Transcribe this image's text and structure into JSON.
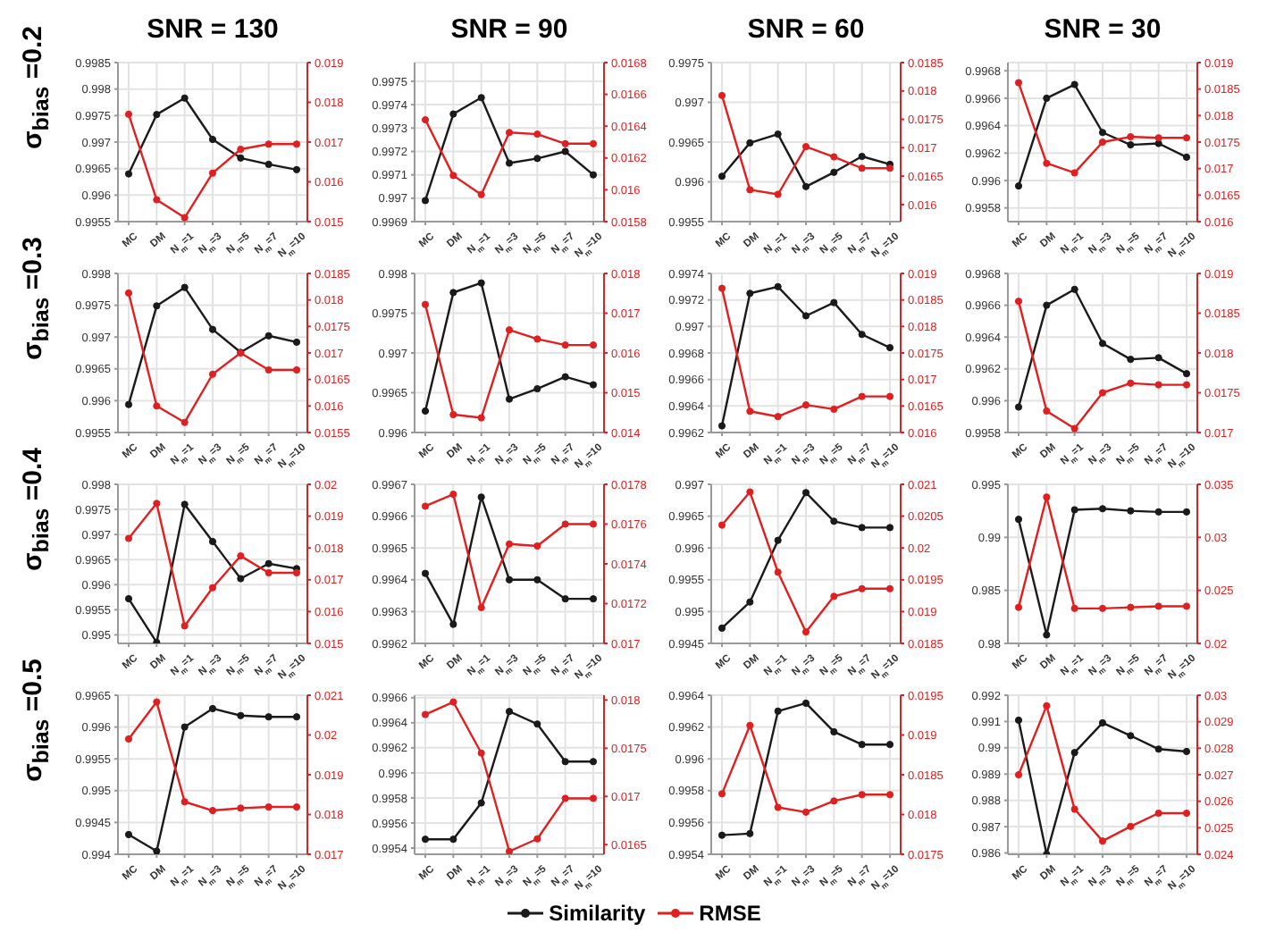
{
  "chart_data": [
    {
      "type": "line",
      "title": "SNR = 130",
      "ylabel": "σ$_{bias}$ =0.2",
      "categories": [
        "MC",
        "DM",
        "N$_{m}$=1",
        "N$_{m}$=3",
        "N$_{m}$=5",
        "N$_{m}$=7",
        "N$_{m}$=10"
      ],
      "series": [
        {
          "color": "#1a1a1a",
          "values": [
            0.9964,
            0.99752,
            0.99783,
            0.99705,
            0.9967,
            0.99658,
            0.99648
          ]
        },
        {
          "color": "#e02020",
          "axis": "y2",
          "values": [
            0.0177,
            0.01555,
            0.0151,
            0.01622,
            0.01682,
            0.01695,
            0.01695
          ]
        }
      ],
      "ylim": [
        0.9955,
        0.9985
      ],
      "yticks": [
        0.9955,
        0.996,
        0.9965,
        0.997,
        0.9975,
        0.998,
        0.9985
      ],
      "y2lim": [
        0.015,
        0.019
      ],
      "y2ticks": [
        0.015,
        0.016,
        0.017,
        0.018,
        0.019
      ],
      "grid": true,
      "marker": "circle"
    },
    {
      "type": "line",
      "title": "SNR = 90",
      "categories": [
        "MC",
        "DM",
        "N$_{m}$=1",
        "N$_{m}$=3",
        "N$_{m}$=5",
        "N$_{m}$=7",
        "N$_{m}$=10"
      ],
      "series": [
        {
          "color": "#1a1a1a",
          "values": [
            0.99699,
            0.99736,
            0.99743,
            0.99715,
            0.99717,
            0.9972,
            0.9971
          ]
        },
        {
          "color": "#e02020",
          "axis": "y2",
          "values": [
            0.01644,
            0.01609,
            0.01597,
            0.01636,
            0.01635,
            0.01629,
            0.01629
          ]
        }
      ],
      "ylim": [
        0.9969,
        0.99758
      ],
      "yticks": [
        0.9969,
        0.997,
        0.9971,
        0.9972,
        0.9973,
        0.9974,
        0.9975
      ],
      "y2lim": [
        0.0158,
        0.0168
      ],
      "y2ticks": [
        0.0158,
        0.016,
        0.0162,
        0.0164,
        0.0166,
        0.0168
      ],
      "grid": true,
      "marker": "circle"
    },
    {
      "type": "line",
      "title": "SNR = 60",
      "categories": [
        "MC",
        "DM",
        "N$_{m}$=1",
        "N$_{m}$=3",
        "N$_{m}$=5",
        "N$_{m}$=7",
        "N$_{m}$=10"
      ],
      "series": [
        {
          "color": "#1a1a1a",
          "values": [
            0.99607,
            0.99649,
            0.9966,
            0.99594,
            0.99612,
            0.99632,
            0.99622
          ]
        },
        {
          "color": "#e02020",
          "axis": "y2",
          "values": [
            0.01792,
            0.01626,
            0.01618,
            0.01702,
            0.01684,
            0.01664,
            0.01664
          ]
        }
      ],
      "ylim": [
        0.9955,
        0.9975
      ],
      "yticks": [
        0.9955,
        0.996,
        0.9965,
        0.997,
        0.9975
      ],
      "y2lim": [
        0.0157,
        0.0185
      ],
      "y2ticks": [
        0.016,
        0.0165,
        0.017,
        0.0175,
        0.018,
        0.0185
      ],
      "grid": true,
      "marker": "circle"
    },
    {
      "type": "line",
      "title": "SNR = 30",
      "categories": [
        "MC",
        "DM",
        "N$_{m}$=1",
        "N$_{m}$=3",
        "N$_{m}$=5",
        "N$_{m}$=7",
        "N$_{m}$=10"
      ],
      "series": [
        {
          "color": "#1a1a1a",
          "values": [
            0.99596,
            0.9966,
            0.9967,
            0.99635,
            0.99626,
            0.99627,
            0.99617
          ]
        },
        {
          "color": "#e02020",
          "axis": "y2",
          "values": [
            0.01862,
            0.0171,
            0.01692,
            0.0175,
            0.0176,
            0.01758,
            0.01758
          ]
        }
      ],
      "ylim": [
        0.9957,
        0.99686
      ],
      "yticks": [
        0.9958,
        0.996,
        0.9962,
        0.9964,
        0.9966,
        0.9968
      ],
      "y2lim": [
        0.016,
        0.019
      ],
      "y2ticks": [
        0.016,
        0.0165,
        0.017,
        0.0175,
        0.018,
        0.0185,
        0.019
      ],
      "grid": true,
      "marker": "circle"
    },
    {
      "type": "line",
      "ylabel": "σ$_{bias}$ =0.3",
      "categories": [
        "MC",
        "DM",
        "N$_{m}$=1",
        "N$_{m}$=3",
        "N$_{m}$=5",
        "N$_{m}$=7",
        "N$_{m}$=10"
      ],
      "series": [
        {
          "color": "#1a1a1a",
          "values": [
            0.99594,
            0.99749,
            0.99778,
            0.99712,
            0.99676,
            0.99702,
            0.99692
          ]
        },
        {
          "color": "#e02020",
          "axis": "y2",
          "values": [
            0.01813,
            0.016,
            0.01569,
            0.0166,
            0.017,
            0.01668,
            0.01668
          ]
        }
      ],
      "ylim": [
        0.9955,
        0.998
      ],
      "yticks": [
        0.9955,
        0.996,
        0.9965,
        0.997,
        0.9975,
        0.998
      ],
      "y2lim": [
        0.0155,
        0.0185
      ],
      "y2ticks": [
        0.0155,
        0.016,
        0.0165,
        0.017,
        0.0175,
        0.018,
        0.0185
      ],
      "grid": true,
      "marker": "circle"
    },
    {
      "type": "line",
      "categories": [
        "MC",
        "DM",
        "N$_{m}$=1",
        "N$_{m}$=3",
        "N$_{m}$=5",
        "N$_{m}$=7",
        "N$_{m}$=10"
      ],
      "series": [
        {
          "color": "#1a1a1a",
          "values": [
            0.99627,
            0.99776,
            0.99788,
            0.99642,
            0.99655,
            0.9967,
            0.9966
          ]
        },
        {
          "color": "#e02020",
          "axis": "y2",
          "values": [
            0.01722,
            0.01445,
            0.01437,
            0.01658,
            0.01635,
            0.0162,
            0.0162
          ]
        }
      ],
      "ylim": [
        0.996,
        0.998
      ],
      "yticks": [
        0.996,
        0.9965,
        0.997,
        0.9975,
        0.998
      ],
      "y2lim": [
        0.014,
        0.018
      ],
      "y2ticks": [
        0.014,
        0.015,
        0.016,
        0.017,
        0.018
      ],
      "grid": true,
      "marker": "circle"
    },
    {
      "type": "line",
      "categories": [
        "MC",
        "DM",
        "N$_{m}$=1",
        "N$_{m}$=3",
        "N$_{m}$=5",
        "N$_{m}$=7",
        "N$_{m}$=10"
      ],
      "series": [
        {
          "color": "#1a1a1a",
          "values": [
            0.99625,
            0.99725,
            0.9973,
            0.99708,
            0.99718,
            0.99694,
            0.99684
          ]
        },
        {
          "color": "#e02020",
          "axis": "y2",
          "values": [
            0.01872,
            0.0164,
            0.0163,
            0.01652,
            0.01644,
            0.01668,
            0.01668
          ]
        }
      ],
      "ylim": [
        0.9962,
        0.9974
      ],
      "yticks": [
        0.9962,
        0.9964,
        0.9966,
        0.9968,
        0.997,
        0.9972,
        0.9974
      ],
      "y2lim": [
        0.016,
        0.019
      ],
      "y2ticks": [
        0.016,
        0.0165,
        0.017,
        0.0175,
        0.018,
        0.0185,
        0.019
      ],
      "grid": true,
      "marker": "circle"
    },
    {
      "type": "line",
      "categories": [
        "MC",
        "DM",
        "N$_{m}$=1",
        "N$_{m}$=3",
        "N$_{m}$=5",
        "N$_{m}$=7",
        "N$_{m}$=10"
      ],
      "series": [
        {
          "color": "#1a1a1a",
          "values": [
            0.99596,
            0.9966,
            0.9967,
            0.99636,
            0.99626,
            0.99627,
            0.99617
          ]
        },
        {
          "color": "#e02020",
          "axis": "y2",
          "values": [
            0.01865,
            0.01727,
            0.01705,
            0.0175,
            0.01762,
            0.0176,
            0.0176
          ]
        }
      ],
      "ylim": [
        0.9958,
        0.9968
      ],
      "yticks": [
        0.9958,
        0.996,
        0.9962,
        0.9964,
        0.9966,
        0.9968
      ],
      "y2lim": [
        0.017,
        0.019
      ],
      "y2ticks": [
        0.017,
        0.0175,
        0.018,
        0.0185,
        0.019
      ],
      "grid": true,
      "marker": "circle"
    },
    {
      "type": "line",
      "ylabel": "σ$_{bias}$ =0.4",
      "categories": [
        "MC",
        "DM",
        "N$_{m}$=1",
        "N$_{m}$=3",
        "N$_{m}$=5",
        "N$_{m}$=7",
        "N$_{m}$=10"
      ],
      "series": [
        {
          "color": "#1a1a1a",
          "values": [
            0.99572,
            0.99485,
            0.9976,
            0.99686,
            0.99612,
            0.99642,
            0.99632
          ]
        },
        {
          "color": "#e02020",
          "axis": "y2",
          "values": [
            0.0183,
            0.0194,
            0.01555,
            0.01675,
            0.01775,
            0.01722,
            0.01722
          ]
        }
      ],
      "ylim": [
        0.99483,
        0.998
      ],
      "yticks": [
        0.995,
        0.9955,
        0.996,
        0.9965,
        0.997,
        0.9975,
        0.998
      ],
      "y2lim": [
        0.015,
        0.02
      ],
      "y2ticks": [
        0.015,
        0.016,
        0.017,
        0.018,
        0.019,
        0.02
      ],
      "grid": true,
      "marker": "circle"
    },
    {
      "type": "line",
      "categories": [
        "MC",
        "DM",
        "N$_{m}$=1",
        "N$_{m}$=3",
        "N$_{m}$=5",
        "N$_{m}$=7",
        "N$_{m}$=10"
      ],
      "series": [
        {
          "color": "#1a1a1a",
          "values": [
            0.99642,
            0.99626,
            0.99666,
            0.9964,
            0.9964,
            0.99634,
            0.99634
          ]
        },
        {
          "color": "#e02020",
          "axis": "y2",
          "values": [
            0.01769,
            0.01775,
            0.01718,
            0.0175,
            0.01749,
            0.0176,
            0.0176
          ]
        }
      ],
      "ylim": [
        0.9962,
        0.9967
      ],
      "yticks": [
        0.9962,
        0.9963,
        0.9964,
        0.9965,
        0.9966,
        0.9967
      ],
      "y2lim": [
        0.017,
        0.0178
      ],
      "y2ticks": [
        0.017,
        0.0172,
        0.0174,
        0.0176,
        0.0178
      ],
      "grid": true,
      "marker": "circle"
    },
    {
      "type": "line",
      "categories": [
        "MC",
        "DM",
        "N$_{m}$=1",
        "N$_{m}$=3",
        "N$_{m}$=5",
        "N$_{m}$=7",
        "N$_{m}$=10"
      ],
      "series": [
        {
          "color": "#1a1a1a",
          "values": [
            0.99474,
            0.99515,
            0.99612,
            0.99687,
            0.99642,
            0.99632,
            0.99632
          ]
        },
        {
          "color": "#e02020",
          "axis": "y2",
          "values": [
            0.02036,
            0.02088,
            0.01962,
            0.01868,
            0.01924,
            0.01936,
            0.01936
          ]
        }
      ],
      "ylim": [
        0.9945,
        0.997
      ],
      "yticks": [
        0.9945,
        0.995,
        0.9955,
        0.996,
        0.9965,
        0.997
      ],
      "y2lim": [
        0.0185,
        0.021
      ],
      "y2ticks": [
        0.0185,
        0.019,
        0.0195,
        0.02,
        0.0205,
        0.021
      ],
      "grid": true,
      "marker": "circle"
    },
    {
      "type": "line",
      "categories": [
        "MC",
        "DM",
        "N$_{m}$=1",
        "N$_{m}$=3",
        "N$_{m}$=5",
        "N$_{m}$=7",
        "N$_{m}$=10"
      ],
      "series": [
        {
          "color": "#1a1a1a",
          "values": [
            0.9917,
            0.9808,
            0.9926,
            0.9927,
            0.9925,
            0.9924,
            0.9924
          ]
        },
        {
          "color": "#e02020",
          "axis": "y2",
          "values": [
            0.0234,
            0.0338,
            0.0233,
            0.0233,
            0.0234,
            0.0235,
            0.0235
          ]
        }
      ],
      "ylim": [
        0.98,
        0.995
      ],
      "yticks": [
        0.98,
        0.985,
        0.99,
        0.995
      ],
      "y2lim": [
        0.02,
        0.035
      ],
      "y2ticks": [
        0.02,
        0.025,
        0.03,
        0.035
      ],
      "grid": true,
      "marker": "circle"
    },
    {
      "type": "line",
      "ylabel": "σ$_{bias}$ =0.5",
      "categories": [
        "MC",
        "DM",
        "N$_{m}$=1",
        "N$_{m}$=3",
        "N$_{m}$=5",
        "N$_{m}$=7",
        "N$_{m}$=10"
      ],
      "series": [
        {
          "color": "#1a1a1a",
          "values": [
            0.99431,
            0.99405,
            0.996,
            0.99629,
            0.99618,
            0.99616,
            0.99616
          ]
        },
        {
          "color": "#e02020",
          "axis": "y2",
          "values": [
            0.0199,
            0.02083,
            0.01832,
            0.0181,
            0.01816,
            0.01819,
            0.01819
          ]
        }
      ],
      "ylim": [
        0.994,
        0.9965
      ],
      "yticks": [
        0.994,
        0.9945,
        0.995,
        0.9955,
        0.996,
        0.9965
      ],
      "y2lim": [
        0.017,
        0.021
      ],
      "y2ticks": [
        0.017,
        0.018,
        0.019,
        0.02,
        0.021
      ],
      "grid": true,
      "marker": "circle"
    },
    {
      "type": "line",
      "categories": [
        "MC",
        "DM",
        "N$_{m}$=1",
        "N$_{m}$=3",
        "N$_{m}$=5",
        "N$_{m}$=7",
        "N$_{m}$=10"
      ],
      "series": [
        {
          "name": "Similarity",
          "color": "#1a1a1a",
          "values": [
            0.99547,
            0.99547,
            0.99576,
            0.99649,
            0.99639,
            0.99609,
            0.99609
          ]
        },
        {
          "name": "RMSE",
          "color": "#e02020",
          "axis": "y2",
          "values": [
            0.01785,
            0.01798,
            0.01745,
            0.01643,
            0.01656,
            0.01698,
            0.01698
          ]
        }
      ],
      "ylim": [
        0.99535,
        0.99662
      ],
      "yticks": [
        0.9954,
        0.9956,
        0.9958,
        0.996,
        0.9962,
        0.9964,
        0.9966
      ],
      "y2lim": [
        0.0164,
        0.01805
      ],
      "y2ticks": [
        0.0165,
        0.017,
        0.0175,
        0.018
      ],
      "grid": true,
      "marker": "circle",
      "legend": "bottom"
    },
    {
      "type": "line",
      "categories": [
        "MC",
        "DM",
        "N$_{m}$=1",
        "N$_{m}$=3",
        "N$_{m}$=5",
        "N$_{m}$=7",
        "N$_{m}$=10"
      ],
      "series": [
        {
          "color": "#1a1a1a",
          "values": [
            0.99552,
            0.99553,
            0.9963,
            0.99635,
            0.99617,
            0.99609,
            0.99609
          ]
        },
        {
          "color": "#e02020",
          "axis": "y2",
          "values": [
            0.01826,
            0.01912,
            0.01809,
            0.01803,
            0.01817,
            0.01825,
            0.01825
          ]
        }
      ],
      "ylim": [
        0.9954,
        0.9964
      ],
      "yticks": [
        0.9954,
        0.9956,
        0.9958,
        0.996,
        0.9962,
        0.9964
      ],
      "y2lim": [
        0.0175,
        0.0195
      ],
      "y2ticks": [
        0.0175,
        0.018,
        0.0185,
        0.019,
        0.0195
      ],
      "grid": true,
      "marker": "circle"
    },
    {
      "type": "line",
      "categories": [
        "MC",
        "DM",
        "N$_{m}$=1",
        "N$_{m}$=3",
        "N$_{m}$=5",
        "N$_{m}$=7",
        "N$_{m}$=10"
      ],
      "series": [
        {
          "color": "#1a1a1a",
          "values": [
            0.99105,
            0.98595,
            0.98982,
            0.99095,
            0.99046,
            0.98995,
            0.98986
          ]
        },
        {
          "color": "#e02020",
          "axis": "y2",
          "values": [
            0.027,
            0.0296,
            0.0257,
            0.0245,
            0.02505,
            0.02555,
            0.02555
          ]
        }
      ],
      "ylim": [
        0.98595,
        0.992
      ],
      "yticks": [
        0.986,
        0.987,
        0.988,
        0.989,
        0.99,
        0.991,
        0.992
      ],
      "y2lim": [
        0.024,
        0.03
      ],
      "y2ticks": [
        0.024,
        0.025,
        0.026,
        0.027,
        0.028,
        0.029,
        0.03
      ],
      "grid": true,
      "marker": "circle"
    }
  ]
}
